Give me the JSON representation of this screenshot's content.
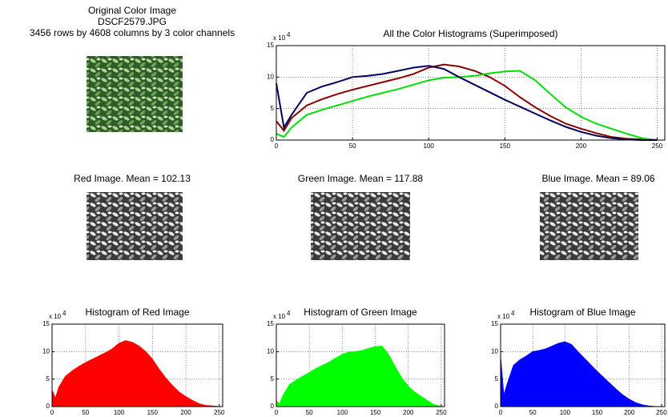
{
  "images": [
    {
      "title_lines": [
        "Original Color Image",
        "DSCF2579.JPG",
        "3456 rows by 4608 columns by 3 color channels"
      ]
    },
    {
      "title": "Red Image.  Mean = 102.13"
    },
    {
      "title": "Green Image.  Mean = 117.88"
    },
    {
      "title": "Blue Image.  Mean =  89.06"
    }
  ],
  "chart_data": [
    {
      "type": "line",
      "title": "All the Color Histograms (Superimposed)",
      "y_multiplier": "x 10",
      "y_multiplier_exponent": "4",
      "x": [
        0,
        5,
        10,
        20,
        30,
        40,
        50,
        60,
        70,
        80,
        90,
        100,
        110,
        120,
        130,
        140,
        150,
        160,
        170,
        180,
        190,
        200,
        210,
        220,
        230,
        240,
        250
      ],
      "series": [
        {
          "name": "Red",
          "color": "#8b0000",
          "values": [
            3,
            1.5,
            3.5,
            5.5,
            6.5,
            7.3,
            8,
            8.6,
            9.2,
            9.8,
            10.5,
            11.5,
            12,
            11.7,
            11,
            10,
            8.6,
            6.8,
            5.2,
            3.8,
            2.6,
            1.8,
            1.1,
            0.5,
            0.2,
            0.1,
            0
          ]
        },
        {
          "name": "Green",
          "color": "#00e000",
          "values": [
            1,
            0.5,
            2,
            4,
            4.8,
            5.5,
            6.2,
            6.9,
            7.5,
            8.1,
            8.8,
            9.5,
            9.9,
            10,
            10.2,
            10.6,
            10.9,
            11,
            9.5,
            7.3,
            5.2,
            3.7,
            2.6,
            1.8,
            1,
            0.3,
            0
          ]
        },
        {
          "name": "Blue",
          "color": "#000060",
          "values": [
            9,
            2,
            4,
            7.5,
            8.5,
            9.2,
            10,
            10.2,
            10.5,
            11,
            11.5,
            11.8,
            11.3,
            10,
            8.8,
            7.6,
            6.4,
            5.3,
            4.2,
            3.1,
            2.1,
            1.3,
            0.7,
            0.3,
            0.1,
            0,
            0
          ]
        }
      ],
      "xlim": [
        0,
        255
      ],
      "ylim": [
        0,
        15
      ],
      "xticks": [
        0,
        50,
        100,
        150,
        200,
        250
      ],
      "yticks": [
        0,
        5,
        10,
        15
      ],
      "grid": true
    },
    {
      "type": "area",
      "title": "Histogram of Red Image",
      "y_multiplier": "x 10",
      "y_multiplier_exponent": "4",
      "x": [
        0,
        5,
        10,
        20,
        30,
        40,
        50,
        60,
        70,
        80,
        90,
        100,
        110,
        120,
        130,
        140,
        150,
        160,
        170,
        180,
        190,
        200,
        210,
        220,
        230,
        240,
        250
      ],
      "series": [
        {
          "name": "Red",
          "color": "#ff0000",
          "values": [
            3,
            1.5,
            3.5,
            5.5,
            6.5,
            7.3,
            8,
            8.6,
            9.2,
            9.8,
            10.5,
            11.5,
            12,
            11.7,
            11,
            10,
            8.6,
            6.8,
            5.2,
            3.8,
            2.6,
            1.8,
            1.1,
            0.5,
            0.2,
            0.1,
            0
          ]
        }
      ],
      "xlim": [
        0,
        255
      ],
      "ylim": [
        0,
        15
      ],
      "xticks": [
        0,
        50,
        100,
        150,
        200,
        250
      ],
      "yticks": [
        0,
        5,
        10,
        15
      ],
      "grid": true
    },
    {
      "type": "area",
      "title": "Histogram of Green Image",
      "y_multiplier": "x 10",
      "y_multiplier_exponent": "4",
      "x": [
        0,
        5,
        10,
        20,
        30,
        40,
        50,
        60,
        70,
        80,
        90,
        100,
        110,
        120,
        130,
        140,
        150,
        160,
        170,
        180,
        190,
        200,
        210,
        220,
        230,
        240,
        250
      ],
      "series": [
        {
          "name": "Green",
          "color": "#00ff00",
          "values": [
            1,
            0.5,
            2,
            4,
            4.8,
            5.5,
            6.2,
            6.9,
            7.5,
            8.1,
            8.8,
            9.5,
            9.9,
            10,
            10.2,
            10.6,
            10.9,
            11,
            9.5,
            7.3,
            5.2,
            3.7,
            2.6,
            1.8,
            1,
            0.3,
            0
          ]
        }
      ],
      "xlim": [
        0,
        255
      ],
      "ylim": [
        0,
        15
      ],
      "xticks": [
        0,
        50,
        100,
        150,
        200,
        250
      ],
      "yticks": [
        0,
        5,
        10,
        15
      ],
      "grid": true
    },
    {
      "type": "area",
      "title": "Histogram of Blue Image",
      "y_multiplier": "x 10",
      "y_multiplier_exponent": "4",
      "x": [
        0,
        5,
        10,
        20,
        30,
        40,
        50,
        60,
        70,
        80,
        90,
        100,
        110,
        120,
        130,
        140,
        150,
        160,
        170,
        180,
        190,
        200,
        210,
        220,
        230,
        240,
        250
      ],
      "series": [
        {
          "name": "Blue",
          "color": "#0000ff",
          "values": [
            9,
            2,
            4,
            7.5,
            8.5,
            9.2,
            10,
            10.2,
            10.5,
            11,
            11.5,
            11.8,
            11.3,
            10,
            8.8,
            7.6,
            6.4,
            5.3,
            4.2,
            3.1,
            2.1,
            1.3,
            0.7,
            0.3,
            0.1,
            0,
            0
          ]
        }
      ],
      "xlim": [
        0,
        255
      ],
      "ylim": [
        0,
        15
      ],
      "xticks": [
        0,
        50,
        100,
        150,
        200,
        250
      ],
      "yticks": [
        0,
        5,
        10,
        15
      ],
      "grid": true
    }
  ]
}
